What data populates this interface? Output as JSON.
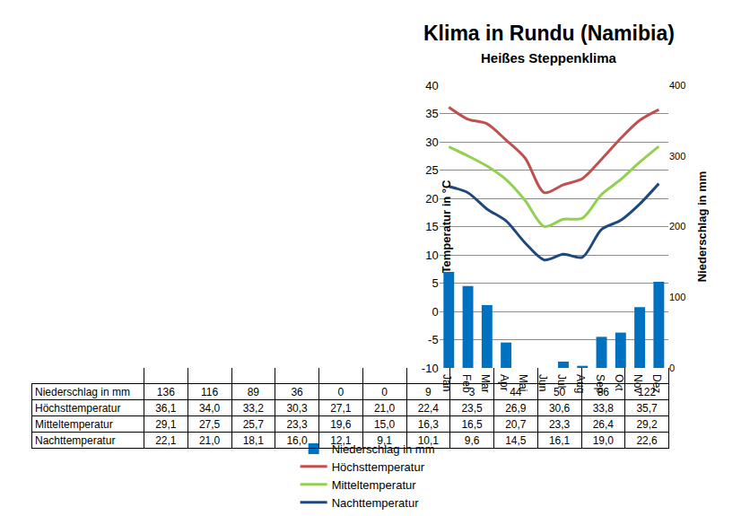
{
  "chart_data": {
    "type": "line",
    "title": "Klima in Rundu (Namibia)",
    "subtitle": "Heißes Steppenklima",
    "ylabel": "Temperatur in °C",
    "y2label": "Niederschlag in mm",
    "categories": [
      "Jan",
      "Feb",
      "Mar",
      "Apr",
      "Mai",
      "Jun",
      "Jul",
      "Aug",
      "Sep",
      "Okt",
      "Nov",
      "Dez"
    ],
    "series": [
      {
        "name": "Niederschlag in mm",
        "type": "bar",
        "axis": "y2",
        "color": "#0070c0",
        "values": [
          136,
          116,
          89,
          36,
          0,
          0,
          9,
          3,
          44,
          50,
          86,
          122
        ]
      },
      {
        "name": "Höchsttemperatur",
        "type": "line",
        "color": "#c0504d",
        "values": [
          36.1,
          34.0,
          33.2,
          30.3,
          27.1,
          21.0,
          22.4,
          23.5,
          26.9,
          30.6,
          33.8,
          35.7
        ],
        "value_labels": [
          "36,1",
          "34,0",
          "33,2",
          "30,3",
          "27,1",
          "21,0",
          "22,4",
          "23,5",
          "26,9",
          "30,6",
          "33,8",
          "35,7"
        ]
      },
      {
        "name": "Mitteltemperatur",
        "type": "line",
        "color": "#92d050",
        "values": [
          29.1,
          27.5,
          25.7,
          23.3,
          19.6,
          15.0,
          16.3,
          16.5,
          20.7,
          23.3,
          26.4,
          29.2
        ],
        "value_labels": [
          "29,1",
          "27,5",
          "25,7",
          "23,3",
          "19,6",
          "15,0",
          "16,3",
          "16,5",
          "20,7",
          "23,3",
          "26,4",
          "29,2"
        ]
      },
      {
        "name": "Nachttemperatur",
        "type": "line",
        "color": "#1f497d",
        "values": [
          22.1,
          21.0,
          18.1,
          16.0,
          12.1,
          9.1,
          10.1,
          9.6,
          14.5,
          16.1,
          19.0,
          22.6
        ],
        "value_labels": [
          "22,1",
          "21,0",
          "18,1",
          "16,0",
          "12,1",
          "9,1",
          "10,1",
          "9,6",
          "14,5",
          "16,1",
          "19,0",
          "22,6"
        ]
      }
    ],
    "ylim": [
      -10,
      40
    ],
    "yticks": [
      -10,
      -5,
      0,
      5,
      10,
      15,
      20,
      25,
      30,
      35,
      40
    ],
    "y2lim": [
      0,
      400
    ],
    "y2ticks": [
      0,
      100,
      200,
      300,
      400
    ],
    "grid": true,
    "legend": "bottom"
  }
}
